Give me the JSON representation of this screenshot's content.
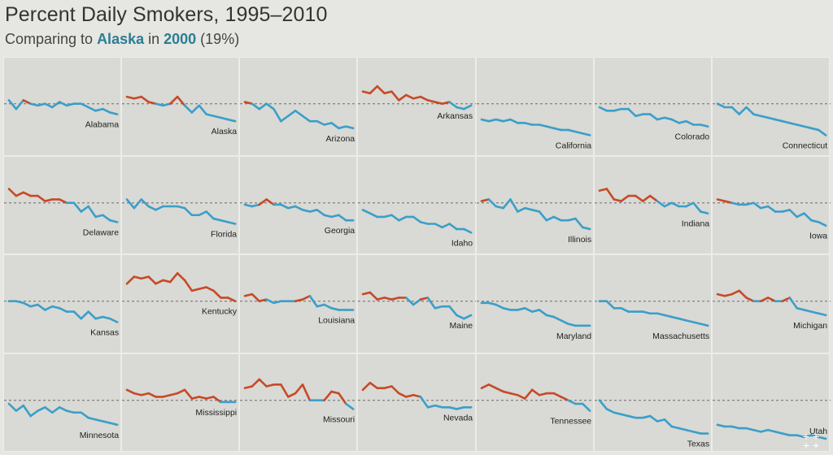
{
  "header": {
    "title": "Percent Daily Smokers, 1995–2010",
    "subtitle_prefix": "Comparing to ",
    "subtitle_state": "Alaska",
    "subtitle_mid": " in ",
    "subtitle_year": "2000",
    "subtitle_suffix": " (19%)"
  },
  "colors": {
    "above": "#c64a26",
    "below": "#3a9fc9",
    "reference": "#6a6a6a",
    "highlight": "#2b7d93"
  },
  "chart_data": {
    "type": "line",
    "layout": "small-multiples",
    "x": [
      1995,
      1996,
      1997,
      1998,
      1999,
      2000,
      2001,
      2002,
      2003,
      2004,
      2005,
      2006,
      2007,
      2008,
      2009,
      2010
    ],
    "reference_value": 19,
    "ylim": [
      8,
      28
    ],
    "series": [
      {
        "name": "Alabama",
        "values": [
          20,
          17.5,
          20,
          19,
          18.5,
          19,
          18,
          19.5,
          18.5,
          19,
          19,
          18,
          17,
          17.5,
          16.5,
          16
        ]
      },
      {
        "name": "Alaska",
        "values": [
          21,
          20.5,
          21,
          19.5,
          19,
          18.5,
          19,
          21,
          18.5,
          16.5,
          18.5,
          16,
          15.5,
          15,
          14.5,
          14
        ]
      },
      {
        "name": "Arizona",
        "values": [
          19.5,
          19,
          17.5,
          19,
          17.5,
          14,
          15.5,
          17,
          15.5,
          14,
          14,
          13,
          13.5,
          12,
          12.5,
          12
        ]
      },
      {
        "name": "Arkansas",
        "values": [
          22.5,
          22,
          24,
          22,
          22.5,
          20,
          21.5,
          20.5,
          21,
          20,
          19.5,
          19,
          19.5,
          18,
          17.5,
          18.5
        ]
      },
      {
        "name": "California",
        "values": [
          14.5,
          14,
          14.5,
          14,
          14.5,
          13.5,
          13.5,
          13,
          13,
          12.5,
          12,
          11.5,
          11.5,
          11,
          10.5,
          10
        ]
      },
      {
        "name": "Colorado",
        "values": [
          18,
          17,
          17,
          17.5,
          17.5,
          15.5,
          16,
          16,
          14.5,
          15,
          14.5,
          13.5,
          14,
          13,
          13,
          12.5
        ]
      },
      {
        "name": "Connecticut",
        "values": [
          19,
          18,
          18,
          16,
          18,
          16,
          15.5,
          15,
          14.5,
          14,
          13.5,
          13,
          12.5,
          12,
          11.5,
          10
        ]
      },
      {
        "name": "Delaware",
        "values": [
          23,
          21,
          22,
          21,
          21,
          19.5,
          20,
          20,
          19,
          19,
          16.5,
          18,
          15,
          15.5,
          14,
          13.5
        ]
      },
      {
        "name": "Florida",
        "values": [
          20,
          17.5,
          20,
          18,
          17,
          18,
          18,
          18,
          17.5,
          15.5,
          15.5,
          16.5,
          14.5,
          14,
          13.5,
          13
        ]
      },
      {
        "name": "Georgia",
        "values": [
          18.5,
          18,
          18.5,
          20,
          18.5,
          18.5,
          17.5,
          18,
          17,
          16.5,
          17,
          15.5,
          15,
          15.5,
          14,
          14
        ]
      },
      {
        "name": "Idaho",
        "values": [
          17,
          16,
          15,
          15,
          15.5,
          14,
          15,
          15,
          13.5,
          13,
          13,
          12,
          13,
          11.5,
          11.5,
          10.5
        ]
      },
      {
        "name": "Illinois",
        "values": [
          19.5,
          20,
          18,
          17.5,
          20,
          16.5,
          17.5,
          17,
          16.5,
          14,
          15,
          14,
          14,
          14.5,
          12,
          11.5
        ]
      },
      {
        "name": "Indiana",
        "values": [
          22.5,
          23,
          20,
          19.5,
          21,
          21,
          19.5,
          21,
          19.5,
          18,
          19,
          18,
          18,
          19,
          16.5,
          16
        ]
      },
      {
        "name": "Iowa",
        "values": [
          20,
          19.5,
          19,
          18.5,
          18.5,
          19,
          17.5,
          18,
          16.5,
          16.5,
          17,
          15,
          16,
          14,
          13.5,
          12.5
        ]
      },
      {
        "name": "Kansas",
        "values": [
          19,
          19,
          18.5,
          17.5,
          18,
          16.5,
          17.5,
          17,
          16,
          16,
          14,
          16,
          14,
          14.5,
          14,
          13
        ]
      },
      {
        "name": "Kentucky",
        "values": [
          24,
          26,
          25.5,
          26,
          24,
          25,
          24.5,
          27,
          25,
          22,
          22.5,
          23,
          22,
          20,
          20,
          19
        ]
      },
      {
        "name": "Louisiana",
        "values": [
          20.5,
          21,
          19,
          19.5,
          18.5,
          19,
          19,
          19,
          19.5,
          20.5,
          17.5,
          18,
          17,
          16.5,
          16.5,
          16.5
        ]
      },
      {
        "name": "Maine",
        "values": [
          21,
          21.5,
          19.5,
          20,
          19.5,
          20,
          20,
          18,
          19.5,
          20,
          17,
          17.5,
          17.5,
          15,
          14,
          15
        ]
      },
      {
        "name": "Maryland",
        "values": [
          18.5,
          18.5,
          18,
          17,
          16.5,
          16.5,
          17,
          16,
          16.5,
          15,
          14.5,
          13.5,
          12.5,
          12,
          12,
          12
        ]
      },
      {
        "name": "Massachusetts",
        "values": [
          19,
          19,
          17,
          17,
          16,
          16,
          16,
          15.5,
          15.5,
          15,
          14.5,
          14,
          13.5,
          13,
          12.5,
          12
        ]
      },
      {
        "name": "Michigan",
        "values": [
          21,
          20.5,
          21,
          22,
          20,
          19,
          19,
          20,
          19,
          19,
          20,
          17,
          16.5,
          16,
          15.5,
          15
        ]
      },
      {
        "name": "Minnesota",
        "values": [
          18,
          16,
          17.5,
          14.5,
          16,
          17,
          15.5,
          17,
          16,
          15.5,
          15.5,
          14,
          13.5,
          13,
          12.5,
          12
        ]
      },
      {
        "name": "Mississippi",
        "values": [
          22,
          21,
          20.5,
          21,
          20,
          20,
          20.5,
          21,
          22,
          19.5,
          20,
          19.5,
          20,
          18.5,
          18.5,
          18.5
        ]
      },
      {
        "name": "Missouri",
        "values": [
          22.5,
          23,
          25,
          23,
          23.5,
          23.5,
          20,
          21,
          23.5,
          19,
          19,
          19,
          21.5,
          21,
          18,
          16.5
        ]
      },
      {
        "name": "Nevada",
        "values": [
          22,
          24,
          22.5,
          22.5,
          23,
          21,
          20,
          20.5,
          20,
          17,
          17.5,
          17,
          17,
          16.5,
          17,
          17
        ]
      },
      {
        "name": "Tennessee",
        "values": [
          22.5,
          23.5,
          22.5,
          21.5,
          21,
          20.5,
          19.5,
          22,
          20.5,
          21,
          21,
          20,
          19,
          18,
          18,
          16
        ]
      },
      {
        "name": "Texas",
        "values": [
          19,
          16.5,
          15.5,
          15,
          14.5,
          14,
          14,
          14.5,
          13,
          13.5,
          11.5,
          11,
          10.5,
          10,
          9.5,
          9.5
        ]
      },
      {
        "name": "Utah",
        "values": [
          12,
          11.5,
          11.5,
          11,
          11,
          10.5,
          10,
          10.5,
          10,
          9.5,
          9,
          9,
          8.5,
          9,
          8.5,
          8
        ]
      }
    ]
  }
}
